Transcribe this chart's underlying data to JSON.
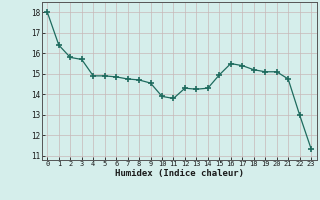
{
  "x": [
    0,
    1,
    2,
    3,
    4,
    5,
    6,
    7,
    8,
    9,
    10,
    11,
    12,
    13,
    14,
    15,
    16,
    17,
    18,
    19,
    20,
    21,
    22,
    23
  ],
  "y": [
    18.0,
    16.4,
    15.8,
    15.7,
    14.9,
    14.9,
    14.85,
    14.75,
    14.7,
    14.55,
    13.9,
    13.8,
    14.3,
    14.25,
    14.3,
    14.95,
    15.5,
    15.4,
    15.2,
    15.1,
    15.1,
    14.75,
    13.0,
    11.35
  ],
  "line_color": "#1e6b5e",
  "marker": "+",
  "marker_size": 4,
  "bg_color": "#d5eeeb",
  "grid_color": "#c8b8b8",
  "xlabel": "Humidex (Indice chaleur)",
  "ylim": [
    10.8,
    18.5
  ],
  "xlim": [
    -0.5,
    23.5
  ],
  "yticks": [
    11,
    12,
    13,
    14,
    15,
    16,
    17,
    18
  ],
  "xticks": [
    0,
    1,
    2,
    3,
    4,
    5,
    6,
    7,
    8,
    9,
    10,
    11,
    12,
    13,
    14,
    15,
    16,
    17,
    18,
    19,
    20,
    21,
    22,
    23
  ]
}
